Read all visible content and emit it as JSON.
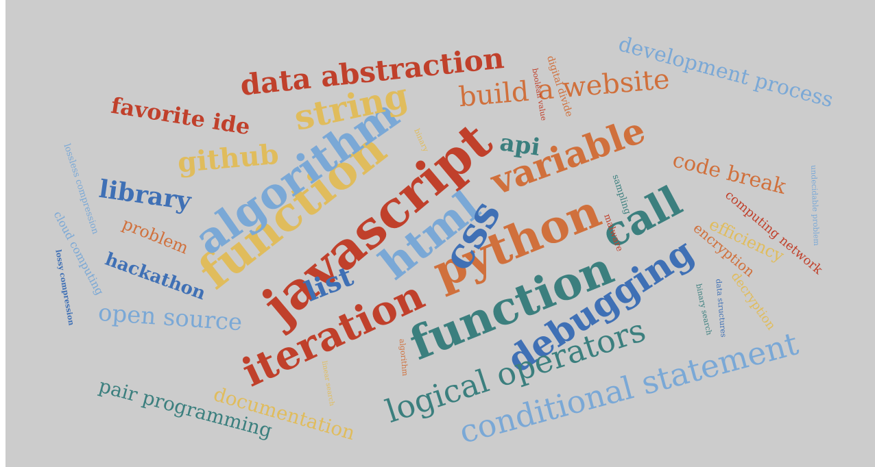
{
  "palette": {
    "background": "#cccccc",
    "red": "#c0402b",
    "orange": "#d0703c",
    "yellow": "#e0bc5c",
    "lightblue": "#7aa8d6",
    "blue": "#3f70b5",
    "teal": "#3b7f7e"
  },
  "words": [
    {
      "text": "javascript",
      "color": "red"
    },
    {
      "text": "function",
      "color": "yellow"
    },
    {
      "text": "function",
      "color": "teal"
    },
    {
      "text": "algorithm",
      "color": "lightblue"
    },
    {
      "text": "python",
      "color": "orange"
    },
    {
      "text": "iteration",
      "color": "red"
    },
    {
      "text": "html",
      "color": "lightblue"
    },
    {
      "text": "call",
      "color": "teal"
    },
    {
      "text": "css",
      "color": "blue"
    },
    {
      "text": "debugging",
      "color": "blue"
    },
    {
      "text": "variable",
      "color": "orange"
    },
    {
      "text": "string",
      "color": "yellow"
    },
    {
      "text": "conditional statement",
      "color": "lightblue"
    },
    {
      "text": "logical operators",
      "color": "teal"
    },
    {
      "text": "data abstraction",
      "color": "red"
    },
    {
      "text": "build a website",
      "color": "orange"
    },
    {
      "text": "development process",
      "color": "lightblue"
    },
    {
      "text": "github",
      "color": "yellow"
    },
    {
      "text": "library",
      "color": "blue"
    },
    {
      "text": "favorite ide",
      "color": "red"
    },
    {
      "text": "open source",
      "color": "lightblue"
    },
    {
      "text": "list",
      "color": "blue"
    },
    {
      "text": "api",
      "color": "teal"
    },
    {
      "text": "code break",
      "color": "orange"
    },
    {
      "text": "pair programming",
      "color": "teal"
    },
    {
      "text": "documentation",
      "color": "yellow"
    },
    {
      "text": "hackathon",
      "color": "blue"
    },
    {
      "text": "problem",
      "color": "orange"
    },
    {
      "text": "efficiency",
      "color": "yellow"
    },
    {
      "text": "computing network",
      "color": "red"
    },
    {
      "text": "encryption",
      "color": "orange"
    },
    {
      "text": "decryption",
      "color": "yellow"
    },
    {
      "text": "lossless compression",
      "color": "lightblue"
    },
    {
      "text": "cloud computing",
      "color": "lightblue"
    },
    {
      "text": "lossy compression",
      "color": "blue"
    },
    {
      "text": "digital divide",
      "color": "orange"
    },
    {
      "text": "boolean value",
      "color": "red"
    },
    {
      "text": "binary",
      "color": "yellow"
    },
    {
      "text": "sampling",
      "color": "teal"
    },
    {
      "text": "malware",
      "color": "red"
    },
    {
      "text": "undecidable problem",
      "color": "lightblue"
    },
    {
      "text": "data structures",
      "color": "blue"
    },
    {
      "text": "binary search",
      "color": "teal"
    },
    {
      "text": "linear search",
      "color": "yellow"
    },
    {
      "text": "algorithm",
      "color": "orange"
    }
  ]
}
